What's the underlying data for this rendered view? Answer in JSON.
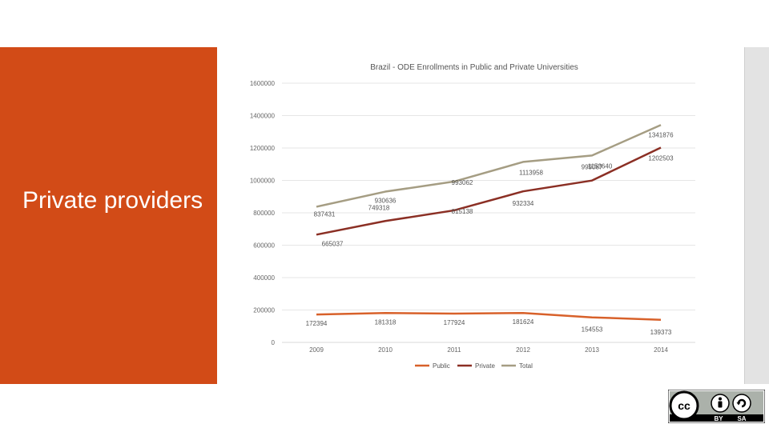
{
  "slide": {
    "title": "Private providers"
  },
  "license_badge": {
    "icon": "cc-by-sa-icon",
    "labels": [
      "BY",
      "SA"
    ]
  },
  "colors": {
    "panel": "#d24b17",
    "public": "#d8612a",
    "private": "#8b2f24",
    "total": "#a59d83"
  },
  "chart_data": {
    "type": "line",
    "title": "Brazil - ODE Enrollments in Public and Private Universities",
    "xlabel": "",
    "ylabel": "",
    "x": [
      "2009",
      "2010",
      "2011",
      "2012",
      "2013",
      "2014"
    ],
    "ylim": [
      0,
      1600000
    ],
    "yticks": [
      "0",
      "200000",
      "400000",
      "600000",
      "800000",
      "1000000",
      "1200000",
      "1400000",
      "1600000"
    ],
    "grid": true,
    "legend": "bottom",
    "series": [
      {
        "name": "Public",
        "color": "#d8612a",
        "values": [
          172394,
          181318,
          177924,
          181624,
          154553,
          139373
        ],
        "labels": [
          "172394",
          "181318",
          "177924",
          "181624",
          "154553",
          "139373"
        ]
      },
      {
        "name": "Private",
        "color": "#8b2f24",
        "values": [
          665037,
          749318,
          815138,
          932334,
          999087,
          1202503
        ],
        "labels": [
          "665037",
          "749318",
          "815138",
          "932334",
          "999087",
          "1202503"
        ]
      },
      {
        "name": "Total",
        "color": "#a59d83",
        "values": [
          837431,
          930636,
          993062,
          1113958,
          1153640,
          1341876
        ],
        "labels": [
          "837431",
          "930636",
          "993062",
          "1113958",
          "1153640",
          "1341876"
        ]
      }
    ]
  }
}
